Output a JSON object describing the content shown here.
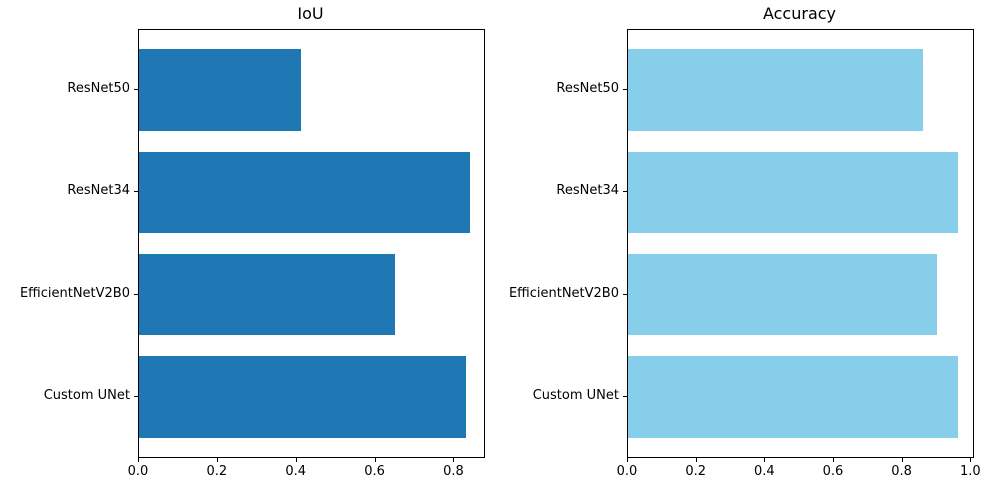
{
  "figure": {
    "background": "#ffffff",
    "text_color": "#000000"
  },
  "chart_data": [
    {
      "type": "bar",
      "orientation": "horizontal",
      "title": "IoU",
      "categories": [
        "ResNet50",
        "ResNet34",
        "EfficientNetV2B0",
        "Custom UNet"
      ],
      "values": [
        0.41,
        0.84,
        0.65,
        0.83
      ],
      "bar_color": "#1f77b4",
      "xlim": [
        0,
        0.875
      ],
      "xticks": [
        0.0,
        0.2,
        0.4,
        0.6,
        0.8
      ],
      "xtick_labels": [
        "0.0",
        "0.2",
        "0.4",
        "0.6",
        "0.8"
      ],
      "grid": false,
      "legend": null
    },
    {
      "type": "bar",
      "orientation": "horizontal",
      "title": "Accuracy",
      "categories": [
        "ResNet50",
        "ResNet34",
        "EfficientNetV2B0",
        "Custom UNet"
      ],
      "values": [
        0.86,
        0.96,
        0.9,
        0.96
      ],
      "bar_color": "#87ceeb",
      "xlim": [
        0,
        1.005
      ],
      "xticks": [
        0.0,
        0.2,
        0.4,
        0.6,
        0.8,
        1.0
      ],
      "xtick_labels": [
        "0.0",
        "0.2",
        "0.4",
        "0.6",
        "0.8",
        "1.0"
      ],
      "grid": false,
      "legend": null
    }
  ]
}
